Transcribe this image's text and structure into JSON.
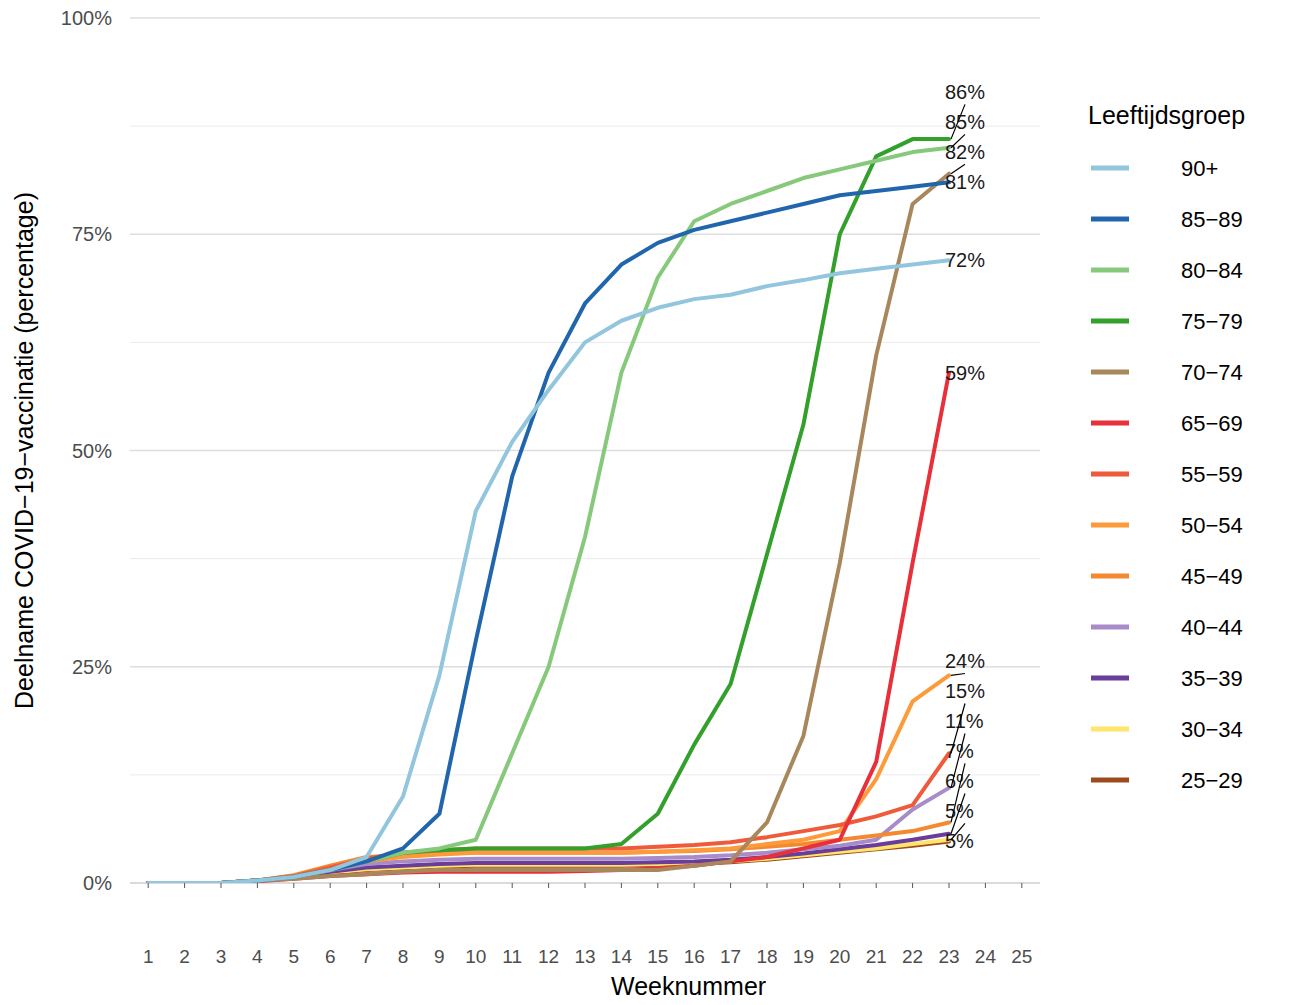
{
  "chart_data": {
    "type": "line",
    "x_label": "Weeknummer",
    "y_label": "Deelname COVID−19−vaccinatie (percentage)",
    "legend_title": "Leeftijdsgroep",
    "legend": "right",
    "grid": true,
    "xlim": [
      0.5,
      25.5
    ],
    "xticks": [
      1,
      2,
      3,
      4,
      5,
      6,
      7,
      8,
      9,
      10,
      11,
      12,
      13,
      14,
      15,
      16,
      17,
      18,
      19,
      20,
      21,
      22,
      23,
      24,
      25
    ],
    "ylim": [
      0,
      100
    ],
    "yticks": [
      {
        "value": 0,
        "label": "0%"
      },
      {
        "value": 25,
        "label": "25%"
      },
      {
        "value": 50,
        "label": "50%"
      },
      {
        "value": 75,
        "label": "75%"
      },
      {
        "value": 100,
        "label": "100%"
      }
    ],
    "x": [
      1,
      2,
      3,
      4,
      5,
      6,
      7,
      8,
      9,
      10,
      11,
      12,
      13,
      14,
      15,
      16,
      17,
      18,
      19,
      20,
      21,
      22,
      23
    ],
    "series": [
      {
        "name": "90+",
        "color": "#92c5de",
        "end_label": "72%",
        "values": [
          0,
          0,
          0,
          0.3,
          0.7,
          1.5,
          3,
          10,
          24,
          43,
          51,
          57,
          62.5,
          65,
          66.5,
          67.5,
          68,
          69,
          69.7,
          70.5,
          71,
          71.5,
          72
        ]
      },
      {
        "name": "85−89",
        "color": "#2166ac",
        "end_label": "81%",
        "values": [
          0,
          0,
          0,
          0.3,
          0.7,
          1.5,
          2.5,
          4,
          8,
          28,
          47,
          59,
          67,
          71.5,
          74,
          75.5,
          76.5,
          77.5,
          78.5,
          79.5,
          80,
          80.5,
          81
        ]
      },
      {
        "name": "80−84",
        "color": "#86c97b",
        "end_label": "85%",
        "values": [
          0,
          0,
          0,
          0.3,
          0.7,
          1.5,
          2.5,
          3.5,
          4,
          5,
          15,
          25,
          40,
          59,
          70,
          76.5,
          78.5,
          80,
          81.5,
          82.5,
          83.5,
          84.5,
          85
        ]
      },
      {
        "name": "75−79",
        "color": "#33a02c",
        "end_label": "86%",
        "values": [
          0,
          0,
          0,
          0.3,
          0.7,
          1.5,
          2.5,
          3.5,
          3.8,
          4,
          4,
          4,
          4,
          4.5,
          8,
          16,
          23,
          38,
          53,
          75,
          84,
          86,
          86
        ]
      },
      {
        "name": "70−74",
        "color": "#a8875c",
        "end_label": "82%",
        "values": [
          0,
          0,
          0,
          0.3,
          0.5,
          0.8,
          1,
          1.3,
          1.5,
          1.5,
          1.5,
          1.5,
          1.5,
          1.5,
          1.5,
          2,
          2.5,
          7,
          17,
          37,
          61,
          78.5,
          82
        ]
      },
      {
        "name": "65−69",
        "color": "#e8303a",
        "end_label": "59%",
        "values": [
          0,
          0,
          0,
          0.2,
          0.5,
          0.8,
          1,
          1.2,
          1.3,
          1.3,
          1.3,
          1.3,
          1.4,
          1.5,
          1.7,
          2,
          2.5,
          3,
          4,
          5,
          14,
          37,
          59
        ]
      },
      {
        "name": "55−59",
        "color": "#ee5a3a",
        "end_label": "15%",
        "values": [
          0,
          0,
          0,
          0.3,
          0.8,
          1.8,
          2.8,
          3.5,
          3.8,
          4,
          4,
          4,
          4,
          4,
          4.2,
          4.4,
          4.7,
          5.3,
          6,
          6.7,
          7.7,
          9,
          15
        ]
      },
      {
        "name": "50−54",
        "color": "#fd9a3a",
        "end_label": "24%",
        "values": [
          0,
          0,
          0,
          0.3,
          0.8,
          1.6,
          2.5,
          3,
          3.3,
          3.5,
          3.5,
          3.5,
          3.5,
          3.5,
          3.6,
          3.8,
          4,
          4.5,
          5,
          6,
          12,
          21,
          24
        ]
      },
      {
        "name": "45−49",
        "color": "#f4892f",
        "end_label": "7%",
        "values": [
          0,
          0,
          0,
          0.3,
          0.9,
          2,
          3,
          3.2,
          3.4,
          3.5,
          3.5,
          3.5,
          3.5,
          3.5,
          3.6,
          3.7,
          3.9,
          4.2,
          4.5,
          5,
          5.5,
          6,
          7
        ]
      },
      {
        "name": "40−44",
        "color": "#a88bc9",
        "end_label": "11%",
        "values": [
          0,
          0,
          0,
          0.3,
          0.7,
          1.5,
          2.2,
          2.5,
          2.7,
          2.8,
          2.8,
          2.8,
          2.8,
          2.8,
          2.9,
          3,
          3.2,
          3.5,
          3.9,
          4.3,
          5,
          8.5,
          11
        ]
      },
      {
        "name": "35−39",
        "color": "#6a3d9a",
        "end_label": "6%",
        "values": [
          0,
          0,
          0,
          0.3,
          0.6,
          1.3,
          1.8,
          2,
          2.2,
          2.3,
          2.3,
          2.3,
          2.3,
          2.3,
          2.4,
          2.5,
          2.7,
          3,
          3.4,
          3.9,
          4.4,
          5,
          5.7
        ]
      },
      {
        "name": "30−34",
        "color": "#ffe66b",
        "end_label": "5%",
        "values": [
          0,
          0,
          0,
          0.3,
          0.6,
          1.2,
          1.6,
          1.8,
          2,
          2.1,
          2.1,
          2.1,
          2.1,
          2.1,
          2.2,
          2.3,
          2.5,
          2.8,
          3.2,
          3.6,
          4,
          4.5,
          5
        ]
      },
      {
        "name": "25−29",
        "color": "#9e4a1f",
        "end_label": "5%",
        "values": [
          0,
          0,
          0,
          0.3,
          0.6,
          1.1,
          1.5,
          1.7,
          1.9,
          2,
          2,
          2,
          2,
          2,
          2.1,
          2.2,
          2.4,
          2.7,
          3.1,
          3.5,
          3.9,
          4.3,
          4.8
        ]
      }
    ]
  }
}
